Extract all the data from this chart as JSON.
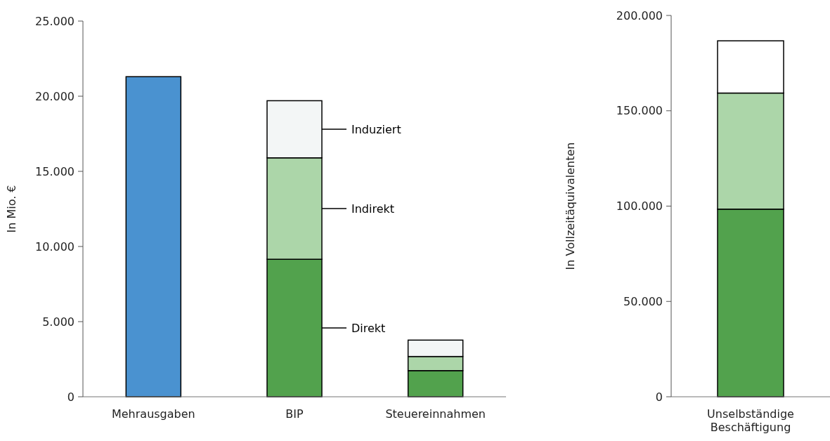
{
  "chart_data": [
    {
      "type": "bar",
      "stacked": true,
      "ylabel": "In Mio. €",
      "categories": [
        "Mehrausgaben",
        "BIP",
        "Steuereinnahmen"
      ],
      "series": [
        {
          "color": "#4a92d0",
          "values": [
            21300,
            null,
            null
          ]
        },
        {
          "name": "Direkt",
          "color": "#52a24d",
          "values": [
            null,
            9150,
            1740
          ]
        },
        {
          "name": "Indirekt",
          "color": "#acd6a9",
          "values": [
            null,
            6750,
            940
          ]
        },
        {
          "name": "Induziert",
          "color": "#f3f6f6",
          "values": [
            null,
            3800,
            1090
          ]
        }
      ],
      "ylim": [
        0,
        25000
      ],
      "yticks": [
        0,
        {
          "value": 5000,
          "label": "5.000"
        },
        {
          "value": 10000,
          "label": "10.000"
        },
        {
          "value": 15000,
          "label": "15.000"
        },
        {
          "value": 20000,
          "label": "20.000"
        },
        {
          "value": 25000,
          "label": "25.000"
        }
      ],
      "grid": false,
      "legend": "right"
    },
    {
      "type": "bar",
      "stacked": true,
      "ylabel": "In Vollzeitäquivalenten",
      "categories": [
        "Unselbständige Beschäftigung"
      ],
      "series": [
        {
          "color": "#52a24d",
          "values": [
            98400
          ]
        },
        {
          "color": "#acd6a9",
          "values": [
            60900
          ]
        },
        {
          "color": "#ffffff",
          "values": [
            27400
          ]
        }
      ],
      "ylim": [
        0,
        200000
      ],
      "yticks": [
        0,
        {
          "value": 50000,
          "label": "50.000"
        },
        {
          "value": 100000,
          "label": "100.000"
        },
        {
          "value": 150000,
          "label": "150.000"
        },
        {
          "value": 200000,
          "label": "200.000"
        }
      ],
      "grid": false
    }
  ]
}
